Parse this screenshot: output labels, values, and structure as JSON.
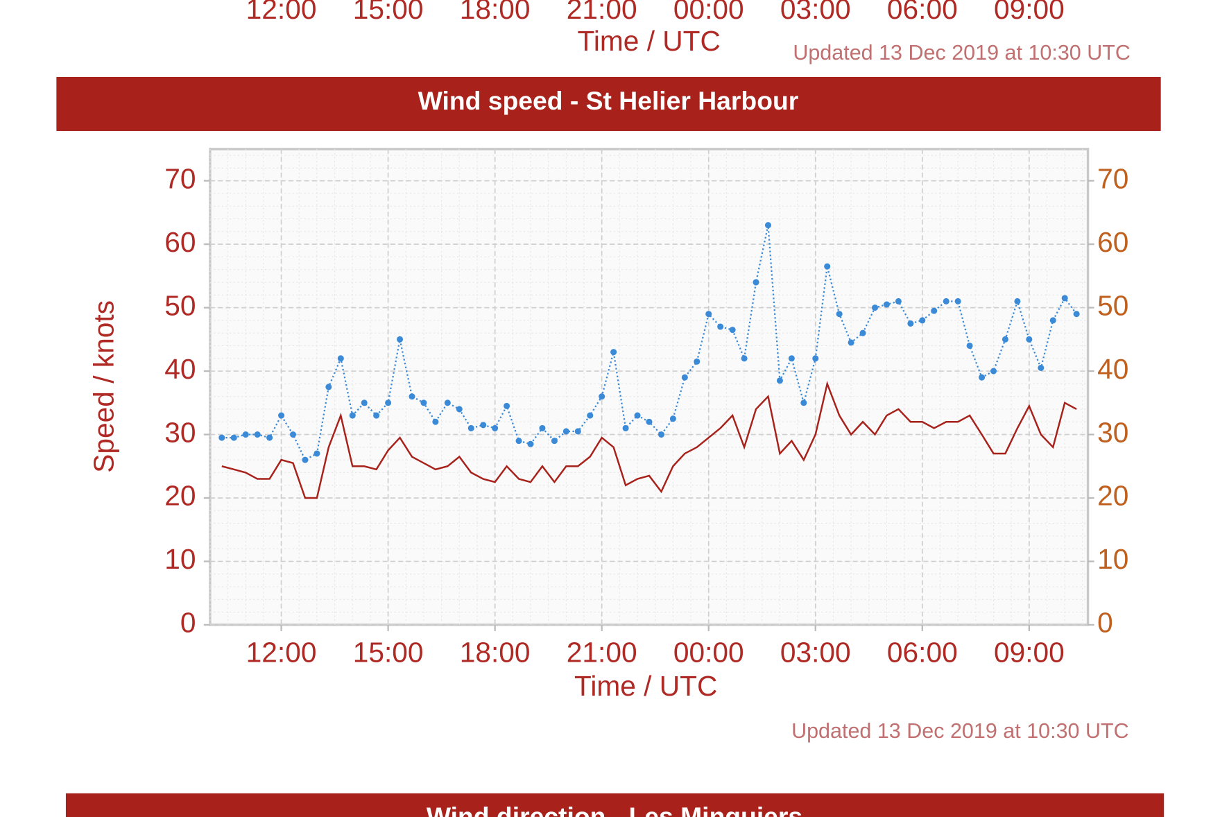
{
  "top_fragment": {
    "xticks": [
      "12:00",
      "15:00",
      "18:00",
      "21:00",
      "00:00",
      "03:00",
      "06:00",
      "09:00"
    ],
    "xlabel": "Time / UTC",
    "updated": "Updated 13 Dec 2019 at 10:30 UTC"
  },
  "chart_data": {
    "type": "line",
    "title": "Wind speed - St Helier Harbour",
    "xlabel": "Time / UTC",
    "ylabel": "Speed / knots",
    "x": [
      10.33,
      10.67,
      11,
      11.33,
      11.67,
      12,
      12.33,
      12.67,
      13,
      13.33,
      13.67,
      14,
      14.33,
      14.67,
      15,
      15.33,
      15.67,
      16,
      16.33,
      16.67,
      17,
      17.33,
      17.67,
      18,
      18.33,
      18.67,
      19,
      19.33,
      19.67,
      20,
      20.33,
      20.67,
      21,
      21.33,
      21.67,
      22,
      22.33,
      22.67,
      23,
      23.33,
      23.67,
      24,
      24.33,
      24.67,
      25,
      25.33,
      25.67,
      26,
      26.33,
      26.67,
      27,
      27.33,
      27.67,
      28,
      28.33,
      28.67,
      29,
      29.33,
      29.67,
      30,
      30.33,
      30.67,
      31,
      31.33,
      31.67,
      32,
      32.33,
      32.67,
      33,
      33.33,
      33.67,
      34,
      34.33
    ],
    "series": [
      {
        "color": "#3a8ad8",
        "style": "dotted",
        "markers": true,
        "values": [
          29.5,
          29.5,
          30,
          30,
          29.5,
          33,
          30,
          26,
          27,
          37.5,
          42,
          33,
          35,
          33,
          35,
          45,
          36,
          35,
          32,
          35,
          34,
          31,
          31.5,
          31,
          34.5,
          29,
          28.5,
          31,
          29,
          30.5,
          30.5,
          33,
          36,
          43,
          31,
          33,
          32,
          30,
          32.5,
          39,
          41.5,
          49,
          47,
          46.5,
          42,
          54,
          63,
          38.5,
          42,
          35,
          42,
          56.5,
          49,
          44.5,
          46,
          50,
          50.5,
          51,
          47.5,
          48,
          49.5,
          51,
          51,
          44,
          39,
          40,
          45,
          51,
          45,
          40.5,
          48,
          51.5,
          49
        ]
      },
      {
        "color": "#a8221c",
        "style": "solid",
        "markers": false,
        "values": [
          25,
          24.5,
          24,
          23,
          23,
          26,
          25.5,
          20,
          20,
          28,
          33,
          25,
          25,
          24.5,
          27.5,
          29.5,
          26.5,
          25.5,
          24.5,
          25,
          26.5,
          24,
          23,
          22.5,
          25,
          23,
          22.5,
          25,
          22.5,
          25,
          25,
          26.5,
          29.5,
          28,
          22,
          23,
          23.5,
          21,
          25,
          27,
          28,
          29.5,
          31,
          33,
          28,
          34,
          36,
          27,
          29,
          26,
          30,
          38,
          33,
          30,
          32,
          30,
          33,
          34,
          32,
          32,
          31,
          32,
          32,
          33,
          30,
          27,
          27,
          31,
          34.5,
          30,
          28,
          35,
          34
        ]
      }
    ],
    "xlim": [
      10,
      34.65
    ],
    "xticks": [
      {
        "value": 12,
        "label": "12:00"
      },
      {
        "value": 15,
        "label": "15:00"
      },
      {
        "value": 18,
        "label": "18:00"
      },
      {
        "value": 21,
        "label": "21:00"
      },
      {
        "value": 24,
        "label": "00:00"
      },
      {
        "value": 27,
        "label": "03:00"
      },
      {
        "value": 30,
        "label": "06:00"
      },
      {
        "value": 33,
        "label": "09:00"
      }
    ],
    "ylim": [
      0,
      75
    ],
    "yticks": [
      0,
      10,
      20,
      30,
      40,
      50,
      60,
      70
    ],
    "y2lim": [
      0,
      75
    ],
    "y2ticks": [
      0,
      10,
      20,
      30,
      40,
      50,
      60,
      70
    ],
    "grid": true
  },
  "updated": "Updated 13 Dec 2019 at 10:30 UTC",
  "next_panel_title": "Wind direction - Les Minquiers"
}
